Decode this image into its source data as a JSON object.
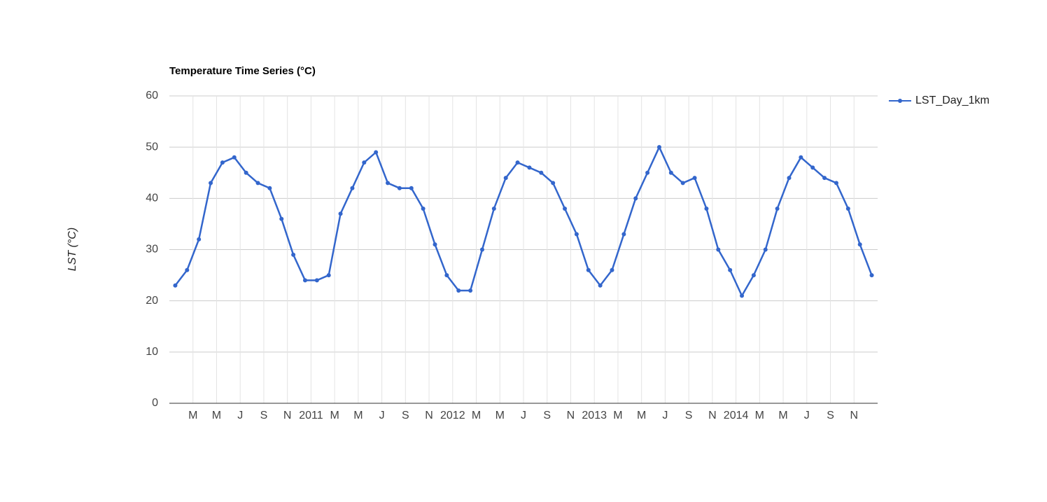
{
  "chart_data": {
    "type": "line",
    "title": "Temperature Time Series (°C)",
    "y_label": "LST (°C)",
    "x": [
      "2010-01",
      "2010-02",
      "2010-03",
      "2010-04",
      "2010-05",
      "2010-06",
      "2010-07",
      "2010-08",
      "2010-09",
      "2010-10",
      "2010-11",
      "2010-12",
      "2011-01",
      "2011-02",
      "2011-03",
      "2011-04",
      "2011-05",
      "2011-06",
      "2011-07",
      "2011-08",
      "2011-09",
      "2011-10",
      "2011-11",
      "2011-12",
      "2012-01",
      "2012-02",
      "2012-03",
      "2012-04",
      "2012-05",
      "2012-06",
      "2012-07",
      "2012-08",
      "2012-09",
      "2012-10",
      "2012-11",
      "2012-12",
      "2013-01",
      "2013-02",
      "2013-03",
      "2013-04",
      "2013-05",
      "2013-06",
      "2013-07",
      "2013-08",
      "2013-09",
      "2013-10",
      "2013-11",
      "2013-12",
      "2014-01",
      "2014-02",
      "2014-03",
      "2014-04",
      "2014-05",
      "2014-06",
      "2014-07",
      "2014-08",
      "2014-09",
      "2014-10",
      "2014-11",
      "2014-12"
    ],
    "series": [
      {
        "name": "LST_Day_1km",
        "color": "#3366cc",
        "values": [
          23,
          26,
          32,
          43,
          47,
          48,
          45,
          43,
          42,
          36,
          29,
          24,
          24,
          25,
          37,
          42,
          47,
          49,
          43,
          42,
          42,
          38,
          31,
          25,
          22,
          22,
          30,
          38,
          44,
          47,
          46,
          45,
          43,
          38,
          33,
          26,
          23,
          26,
          33,
          40,
          45,
          50,
          45,
          43,
          44,
          38,
          30,
          26,
          21,
          25,
          30,
          38,
          44,
          48,
          46,
          44,
          43,
          38,
          31,
          25
        ]
      }
    ],
    "xlim": [
      "2010-01",
      "2015-01"
    ],
    "xticks": [
      {
        "value": "2010-03",
        "label": "M"
      },
      {
        "value": "2010-05",
        "label": "M"
      },
      {
        "value": "2010-07",
        "label": "J"
      },
      {
        "value": "2010-09",
        "label": "S"
      },
      {
        "value": "2010-11",
        "label": "N"
      },
      {
        "value": "2011-01",
        "label": "2011"
      },
      {
        "value": "2011-03",
        "label": "M"
      },
      {
        "value": "2011-05",
        "label": "M"
      },
      {
        "value": "2011-07",
        "label": "J"
      },
      {
        "value": "2011-09",
        "label": "S"
      },
      {
        "value": "2011-11",
        "label": "N"
      },
      {
        "value": "2012-01",
        "label": "2012"
      },
      {
        "value": "2012-03",
        "label": "M"
      },
      {
        "value": "2012-05",
        "label": "M"
      },
      {
        "value": "2012-07",
        "label": "J"
      },
      {
        "value": "2012-09",
        "label": "S"
      },
      {
        "value": "2012-11",
        "label": "N"
      },
      {
        "value": "2013-01",
        "label": "2013"
      },
      {
        "value": "2013-03",
        "label": "M"
      },
      {
        "value": "2013-05",
        "label": "M"
      },
      {
        "value": "2013-07",
        "label": "J"
      },
      {
        "value": "2013-09",
        "label": "S"
      },
      {
        "value": "2013-11",
        "label": "N"
      },
      {
        "value": "2014-01",
        "label": "2014"
      },
      {
        "value": "2014-03",
        "label": "M"
      },
      {
        "value": "2014-05",
        "label": "M"
      },
      {
        "value": "2014-07",
        "label": "J"
      },
      {
        "value": "2014-09",
        "label": "S"
      },
      {
        "value": "2014-11",
        "label": "N"
      }
    ],
    "ylim": [
      0,
      60
    ],
    "yticks": [
      0,
      10,
      20,
      30,
      40,
      50,
      60
    ],
    "grid": true,
    "legend": "right"
  }
}
